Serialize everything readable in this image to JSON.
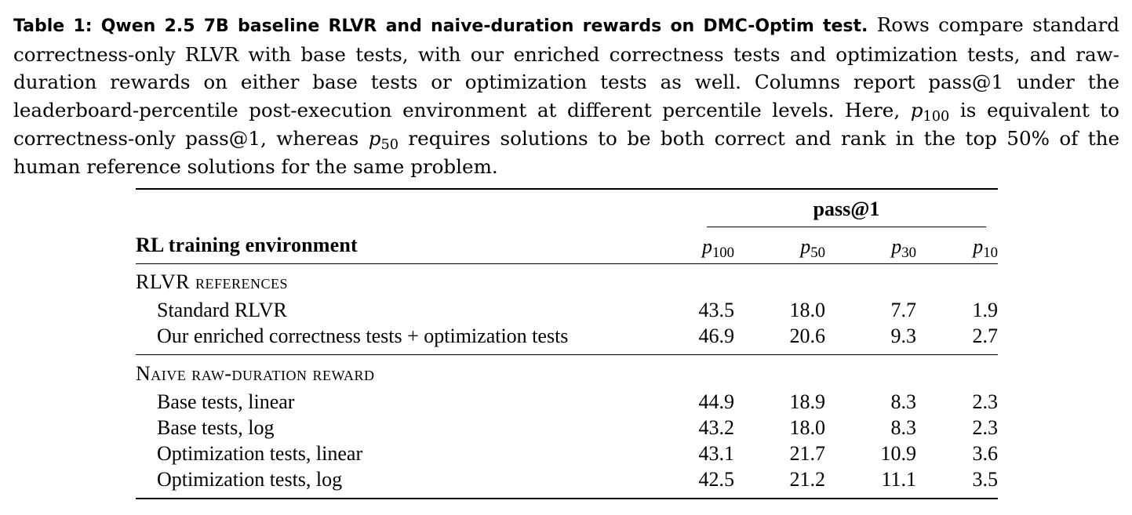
{
  "caption": {
    "label": "Table 1: Qwen 2.5 7B baseline RLVR and naive-duration rewards on DMC-Optim test.",
    "text_part1": " Rows compare standard correctness-only RLVR with base tests, with our enriched correctness tests and optimization tests, and raw-duration rewards on either base tests or optimization tests as well. Columns report pass@1 under the leaderboard-percentile post-execution environment at different percentile levels. Here, ",
    "p100_base": "p",
    "p100_sub": "100",
    "text_part2": " is equivalent to correctness-only pass@1, whereas ",
    "p50_base": "p",
    "p50_sub": "50",
    "text_part3": " requires solutions to be both correct and rank in the top 50% of the human reference solutions for the same problem."
  },
  "table": {
    "row_header": "RL training environment",
    "group_header": "pass@1",
    "columns": [
      {
        "base": "p",
        "sub": "100"
      },
      {
        "base": "p",
        "sub": "50"
      },
      {
        "base": "p",
        "sub": "30"
      },
      {
        "base": "p",
        "sub": "10"
      }
    ],
    "sections": [
      {
        "title": "RLVR references",
        "rows": [
          {
            "label": "Standard RLVR",
            "values": [
              "43.5",
              "18.0",
              "7.7",
              "1.9"
            ]
          },
          {
            "label": "Our enriched correctness tests + optimization tests",
            "values": [
              "46.9",
              "20.6",
              "9.3",
              "2.7"
            ]
          }
        ]
      },
      {
        "title": "Naive raw-duration reward",
        "rows": [
          {
            "label": "Base tests, linear",
            "values": [
              "44.9",
              "18.9",
              "8.3",
              "2.3"
            ]
          },
          {
            "label": "Base tests, log",
            "values": [
              "43.2",
              "18.0",
              "8.3",
              "2.3"
            ]
          },
          {
            "label": "Optimization tests, linear",
            "values": [
              "43.1",
              "21.7",
              "10.9",
              "3.6"
            ]
          },
          {
            "label": "Optimization tests, log",
            "values": [
              "42.5",
              "21.2",
              "11.1",
              "3.5"
            ]
          }
        ]
      }
    ]
  }
}
